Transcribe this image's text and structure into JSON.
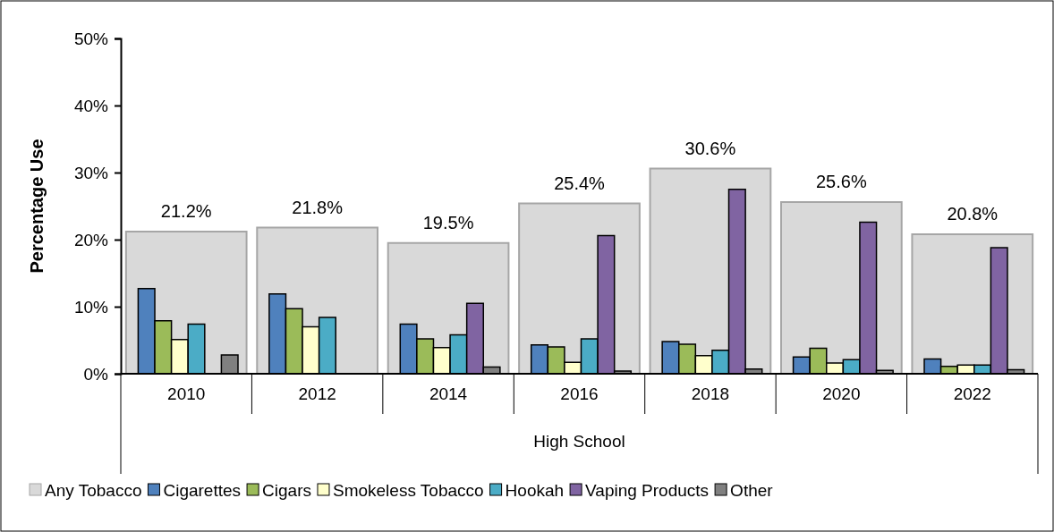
{
  "chart_data": {
    "type": "bar",
    "ylabel": "Percentage Use",
    "xlabel": "High School",
    "categories": [
      "2010",
      "2012",
      "2014",
      "2016",
      "2018",
      "2020",
      "2022"
    ],
    "ylim": [
      0,
      50
    ],
    "yticks": [
      {
        "value": 0,
        "label": "0%"
      },
      {
        "value": 10,
        "label": "10%"
      },
      {
        "value": 20,
        "label": "20%"
      },
      {
        "value": 30,
        "label": "30%"
      },
      {
        "value": 40,
        "label": "40%"
      },
      {
        "value": 50,
        "label": "50%"
      }
    ],
    "grid": false,
    "legend": "bottom",
    "series": [
      {
        "name": "Any Tobacco",
        "color": "#d9d9d9",
        "values": [
          21.2,
          21.8,
          19.5,
          25.4,
          30.6,
          25.6,
          20.8
        ],
        "value_labels": [
          "21.2%",
          "21.8%",
          "19.5%",
          "25.4%",
          "30.6%",
          "25.6%",
          "20.8%"
        ]
      },
      {
        "name": "Cigarettes",
        "color": "#4f81bd",
        "values": [
          12.7,
          11.9,
          7.4,
          4.3,
          4.8,
          2.5,
          2.2
        ]
      },
      {
        "name": "Cigars",
        "color": "#9bbb59",
        "values": [
          7.9,
          9.7,
          5.2,
          4.0,
          4.4,
          3.8,
          1.1
        ]
      },
      {
        "name": "Smokeless Tobacco",
        "color": "#ffffcc",
        "values": [
          5.1,
          7.0,
          3.9,
          1.7,
          2.7,
          1.6,
          1.3
        ]
      },
      {
        "name": "Hookah",
        "color": "#4bacc6",
        "values": [
          7.4,
          8.4,
          5.8,
          5.2,
          3.5,
          2.1,
          1.3
        ]
      },
      {
        "name": "Vaping Products",
        "color": "#8064a2",
        "values": [
          null,
          null,
          10.5,
          20.6,
          27.5,
          22.6,
          18.8
        ]
      },
      {
        "name": "Other",
        "color": "#808080",
        "values": [
          2.8,
          null,
          1.0,
          0.4,
          0.7,
          0.5,
          0.6
        ]
      }
    ]
  }
}
